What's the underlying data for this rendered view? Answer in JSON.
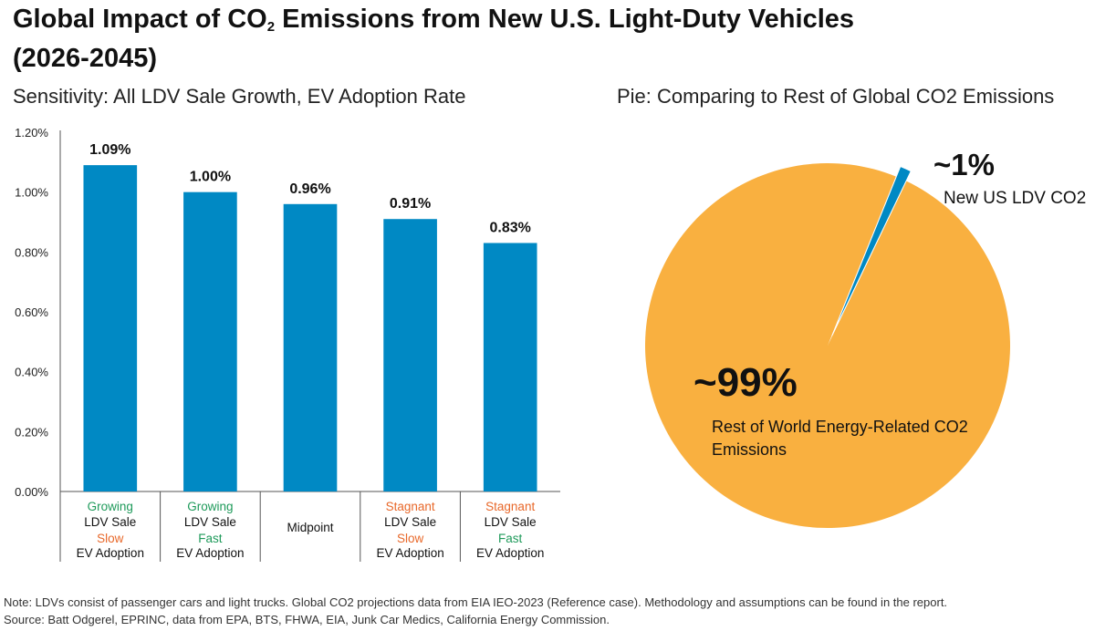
{
  "title": {
    "part1": "Global Impact of CO",
    "sub": "2",
    "part2": " Emissions from New U.S. Light-Duty Vehicles",
    "line2": "(2026-2045)"
  },
  "bar_subtitle": "Sensitivity: All LDV Sale Growth, EV Adoption Rate",
  "pie_subtitle": "Pie: Comparing to Rest of Global CO2 Emissions",
  "categories": [
    {
      "lines": [
        {
          "text": "Growing",
          "tone": "green"
        },
        {
          "text": "LDV Sale",
          "tone": "dark"
        },
        {
          "text": "Slow",
          "tone": "orange"
        },
        {
          "text": "EV Adoption",
          "tone": "dark"
        }
      ]
    },
    {
      "lines": [
        {
          "text": "Growing",
          "tone": "green"
        },
        {
          "text": "LDV Sale",
          "tone": "dark"
        },
        {
          "text": "Fast",
          "tone": "green"
        },
        {
          "text": "EV Adoption",
          "tone": "dark"
        }
      ]
    },
    {
      "lines": [
        {
          "text": "Midpoint",
          "tone": "dark"
        }
      ]
    },
    {
      "lines": [
        {
          "text": "Stagnant",
          "tone": "orange"
        },
        {
          "text": "LDV Sale",
          "tone": "dark"
        },
        {
          "text": "Slow",
          "tone": "orange"
        },
        {
          "text": "EV Adoption",
          "tone": "dark"
        }
      ]
    },
    {
      "lines": [
        {
          "text": "Stagnant",
          "tone": "orange"
        },
        {
          "text": "LDV Sale",
          "tone": "dark"
        },
        {
          "text": "Fast",
          "tone": "green"
        },
        {
          "text": "EV Adoption",
          "tone": "dark"
        }
      ]
    }
  ],
  "chart_data": [
    {
      "type": "bar",
      "title": "Sensitivity: All LDV Sale Growth, EV Adoption Rate",
      "categories": [
        "Growing LDV Sale / Slow EV Adoption",
        "Growing LDV Sale / Fast EV Adoption",
        "Midpoint",
        "Stagnant LDV Sale / Slow EV Adoption",
        "Stagnant LDV Sale / Fast EV Adoption"
      ],
      "values": [
        1.09,
        1.0,
        0.96,
        0.91,
        0.83
      ],
      "value_labels": [
        "1.09%",
        "1.00%",
        "0.96%",
        "0.91%",
        "0.83%"
      ],
      "ylim": [
        0,
        1.2
      ],
      "yticks": [
        0,
        0.2,
        0.4,
        0.6,
        0.8,
        1.0,
        1.2
      ],
      "ytick_labels": [
        "0.00%",
        "0.20%",
        "0.40%",
        "0.60%",
        "0.80%",
        "1.00%",
        "1.20%"
      ],
      "xlabel": "",
      "ylabel": "",
      "color": "#0089c4",
      "grid": false
    },
    {
      "type": "pie",
      "title": "Pie: Comparing to Rest of Global CO2 Emissions",
      "labels": [
        "New US LDV CO2",
        "Rest of World Energy-Related CO2 Emissions"
      ],
      "values": [
        1,
        99
      ],
      "value_labels": [
        "~1%",
        "~99%"
      ],
      "colors": [
        "#0089c4",
        "#f9b040"
      ]
    }
  ],
  "pie_labels": {
    "small_pct": "~1%",
    "small_name": "New US LDV CO2",
    "big_pct": "~99%",
    "big_name": "Rest of World Energy-Related CO2 Emissions"
  },
  "notes": {
    "line1": "Note: LDVs consist of passenger cars and light trucks. Global CO2 projections data from EIA IEO-2023 (Reference case). Methodology and assumptions can be found in the report.",
    "line2": "Source: Batt Odgerel, EPRINC, data from EPA, BTS, FHWA, EIA, Junk Car Medics, California Energy Commission."
  }
}
